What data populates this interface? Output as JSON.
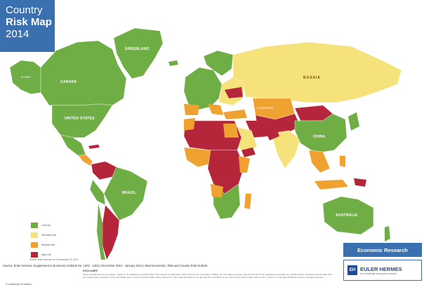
{
  "title": {
    "line1": "Country",
    "line2": "Risk Map",
    "line3": "2014"
  },
  "map_labels": {
    "greenland": "GREENLAND",
    "canada": "CANADA",
    "united_states": "UNITED STATES",
    "alaska": "ALASKA",
    "russia": "RUSSIA",
    "kazakhstan": "KAZAKHSTAN",
    "china": "CHINA",
    "brazil": "BRAZIL",
    "australia": "AUSTRALIA"
  },
  "legend": [
    {
      "label": "Low risk",
      "color": "#6fae45"
    },
    {
      "label": "Sensitive risk",
      "color": "#f5e27a"
    },
    {
      "label": "Medium risk",
      "color": "#f0a231"
    },
    {
      "label": "High risk",
      "color": "#b5263a"
    }
  ],
  "legend_note": "Source: Euler Hermes, as of December 19, 2013",
  "source_line": "Source: Euler Hermes, Supplement to Economic Outlook No. 1202 - 1203 | December 2013 - January 2014 | Macroeconomic, Risk and Country Risk Outlook",
  "disclaimer_title": "DISCLAIMER",
  "disclaimer_text": "These assessments are, as always, subject to the disclaimer provided below. This material is published by Euler Hermes SA, a company of Allianz, for information purposes only and should not be regarded as providing any specific advice. Recipients should make their own independent evaluation of this information and no action should be taken solely relying on it. This material should not be reproduced or disclosed to any other person without Euler Hermes SA's consent. © Copyright 2013 Euler Hermes. All rights reserved.",
  "allianz_text": "A company of Allianz",
  "economic_research": "Economic Research",
  "brand": {
    "initials": "EH",
    "name": "EULER HERMES",
    "tagline": "Our knowledge serving your success"
  },
  "colors": {
    "low": "#6fae45",
    "sensitive": "#f5e27a",
    "medium": "#f0a231",
    "high": "#b5263a",
    "accent": "#3a6fb0"
  }
}
